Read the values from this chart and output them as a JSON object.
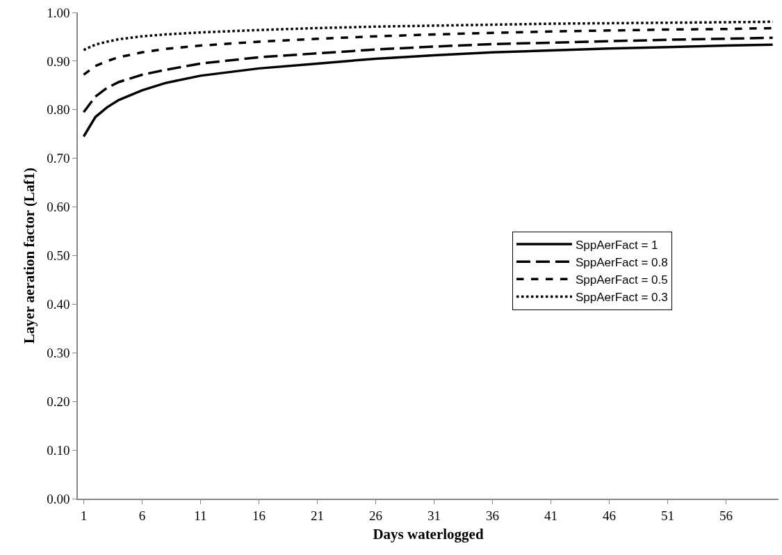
{
  "chart_data": {
    "type": "line",
    "xlabel": "Days waterlogged",
    "ylabel": "Layer aeration factor (Laf1)",
    "x": [
      1,
      2,
      3,
      4,
      6,
      8,
      11,
      16,
      21,
      26,
      31,
      36,
      41,
      46,
      51,
      56,
      60
    ],
    "xlim": [
      0.5,
      60.5
    ],
    "xticks": [
      1,
      6,
      11,
      16,
      21,
      26,
      31,
      36,
      41,
      46,
      51,
      56
    ],
    "ylim": [
      0,
      1
    ],
    "yticks": [
      {
        "value": 0,
        "label": "0.00"
      },
      {
        "value": 0.1,
        "label": "0.10"
      },
      {
        "value": 0.2,
        "label": "0.20"
      },
      {
        "value": 0.3,
        "label": "0.30"
      },
      {
        "value": 0.4,
        "label": "0.40"
      },
      {
        "value": 0.5,
        "label": "0.50"
      },
      {
        "value": 0.6,
        "label": "0.60"
      },
      {
        "value": 0.7,
        "label": "0.70"
      },
      {
        "value": 0.8,
        "label": "0.80"
      },
      {
        "value": 0.9,
        "label": "0.90"
      },
      {
        "value": 1,
        "label": "1.00"
      }
    ],
    "grid": false,
    "legend": "right",
    "marker": "none",
    "series": [
      {
        "name": "SppAerFact = 1",
        "color": "#000000",
        "line_style": "solid",
        "values": [
          0.745,
          0.785,
          0.805,
          0.82,
          0.84,
          0.855,
          0.87,
          0.885,
          0.895,
          0.905,
          0.912,
          0.918,
          0.922,
          0.926,
          0.929,
          0.932,
          0.934
        ]
      },
      {
        "name": "SppAerFact = 0.8",
        "color": "#000000",
        "line_style": "long-dashed",
        "values": [
          0.795,
          0.827,
          0.845,
          0.857,
          0.872,
          0.882,
          0.895,
          0.908,
          0.916,
          0.924,
          0.93,
          0.935,
          0.938,
          0.941,
          0.944,
          0.946,
          0.948
        ]
      },
      {
        "name": "SppAerFact = 0.5",
        "color": "#000000",
        "line_style": "dashed",
        "values": [
          0.872,
          0.89,
          0.9,
          0.908,
          0.918,
          0.925,
          0.932,
          0.94,
          0.946,
          0.951,
          0.955,
          0.958,
          0.961,
          0.963,
          0.965,
          0.966,
          0.968
        ]
      },
      {
        "name": "SppAerFact = 0.3",
        "color": "#000000",
        "line_style": "dotted",
        "values": [
          0.923,
          0.934,
          0.94,
          0.945,
          0.951,
          0.955,
          0.959,
          0.964,
          0.968,
          0.971,
          0.973,
          0.975,
          0.977,
          0.978,
          0.979,
          0.98,
          0.981
        ]
      }
    ]
  }
}
